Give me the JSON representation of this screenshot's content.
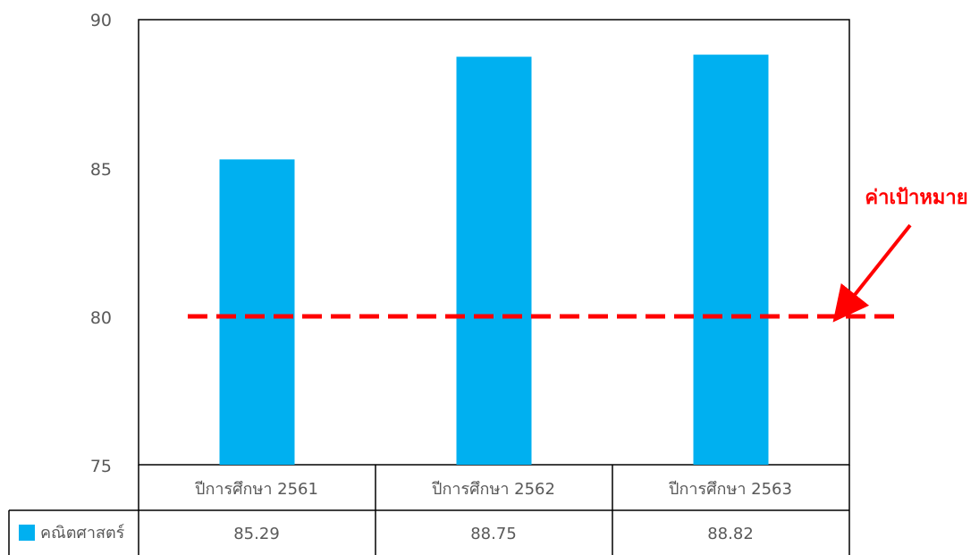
{
  "chart_data": {
    "type": "bar",
    "categories": [
      "ปีการศึกษา 2561",
      "ปีการศึกษา 2562",
      "ปีการศึกษา 2563"
    ],
    "series": [
      {
        "name": "คณิตศาสตร์",
        "values": [
          85.29,
          88.75,
          88.82
        ],
        "color": "#00b0f0"
      }
    ],
    "y_ticks": [
      "90",
      "85",
      "80",
      "75"
    ],
    "table_values": [
      "85.29",
      "88.75",
      "88.82"
    ],
    "ylim": [
      75,
      90
    ],
    "target": {
      "label": "ค่าเป้าหมาย",
      "value": 80,
      "color": "#ff0000",
      "style": "dashed"
    },
    "title": "",
    "xlabel": "",
    "ylabel": "",
    "legend_placement": "data-table",
    "grid": false
  }
}
